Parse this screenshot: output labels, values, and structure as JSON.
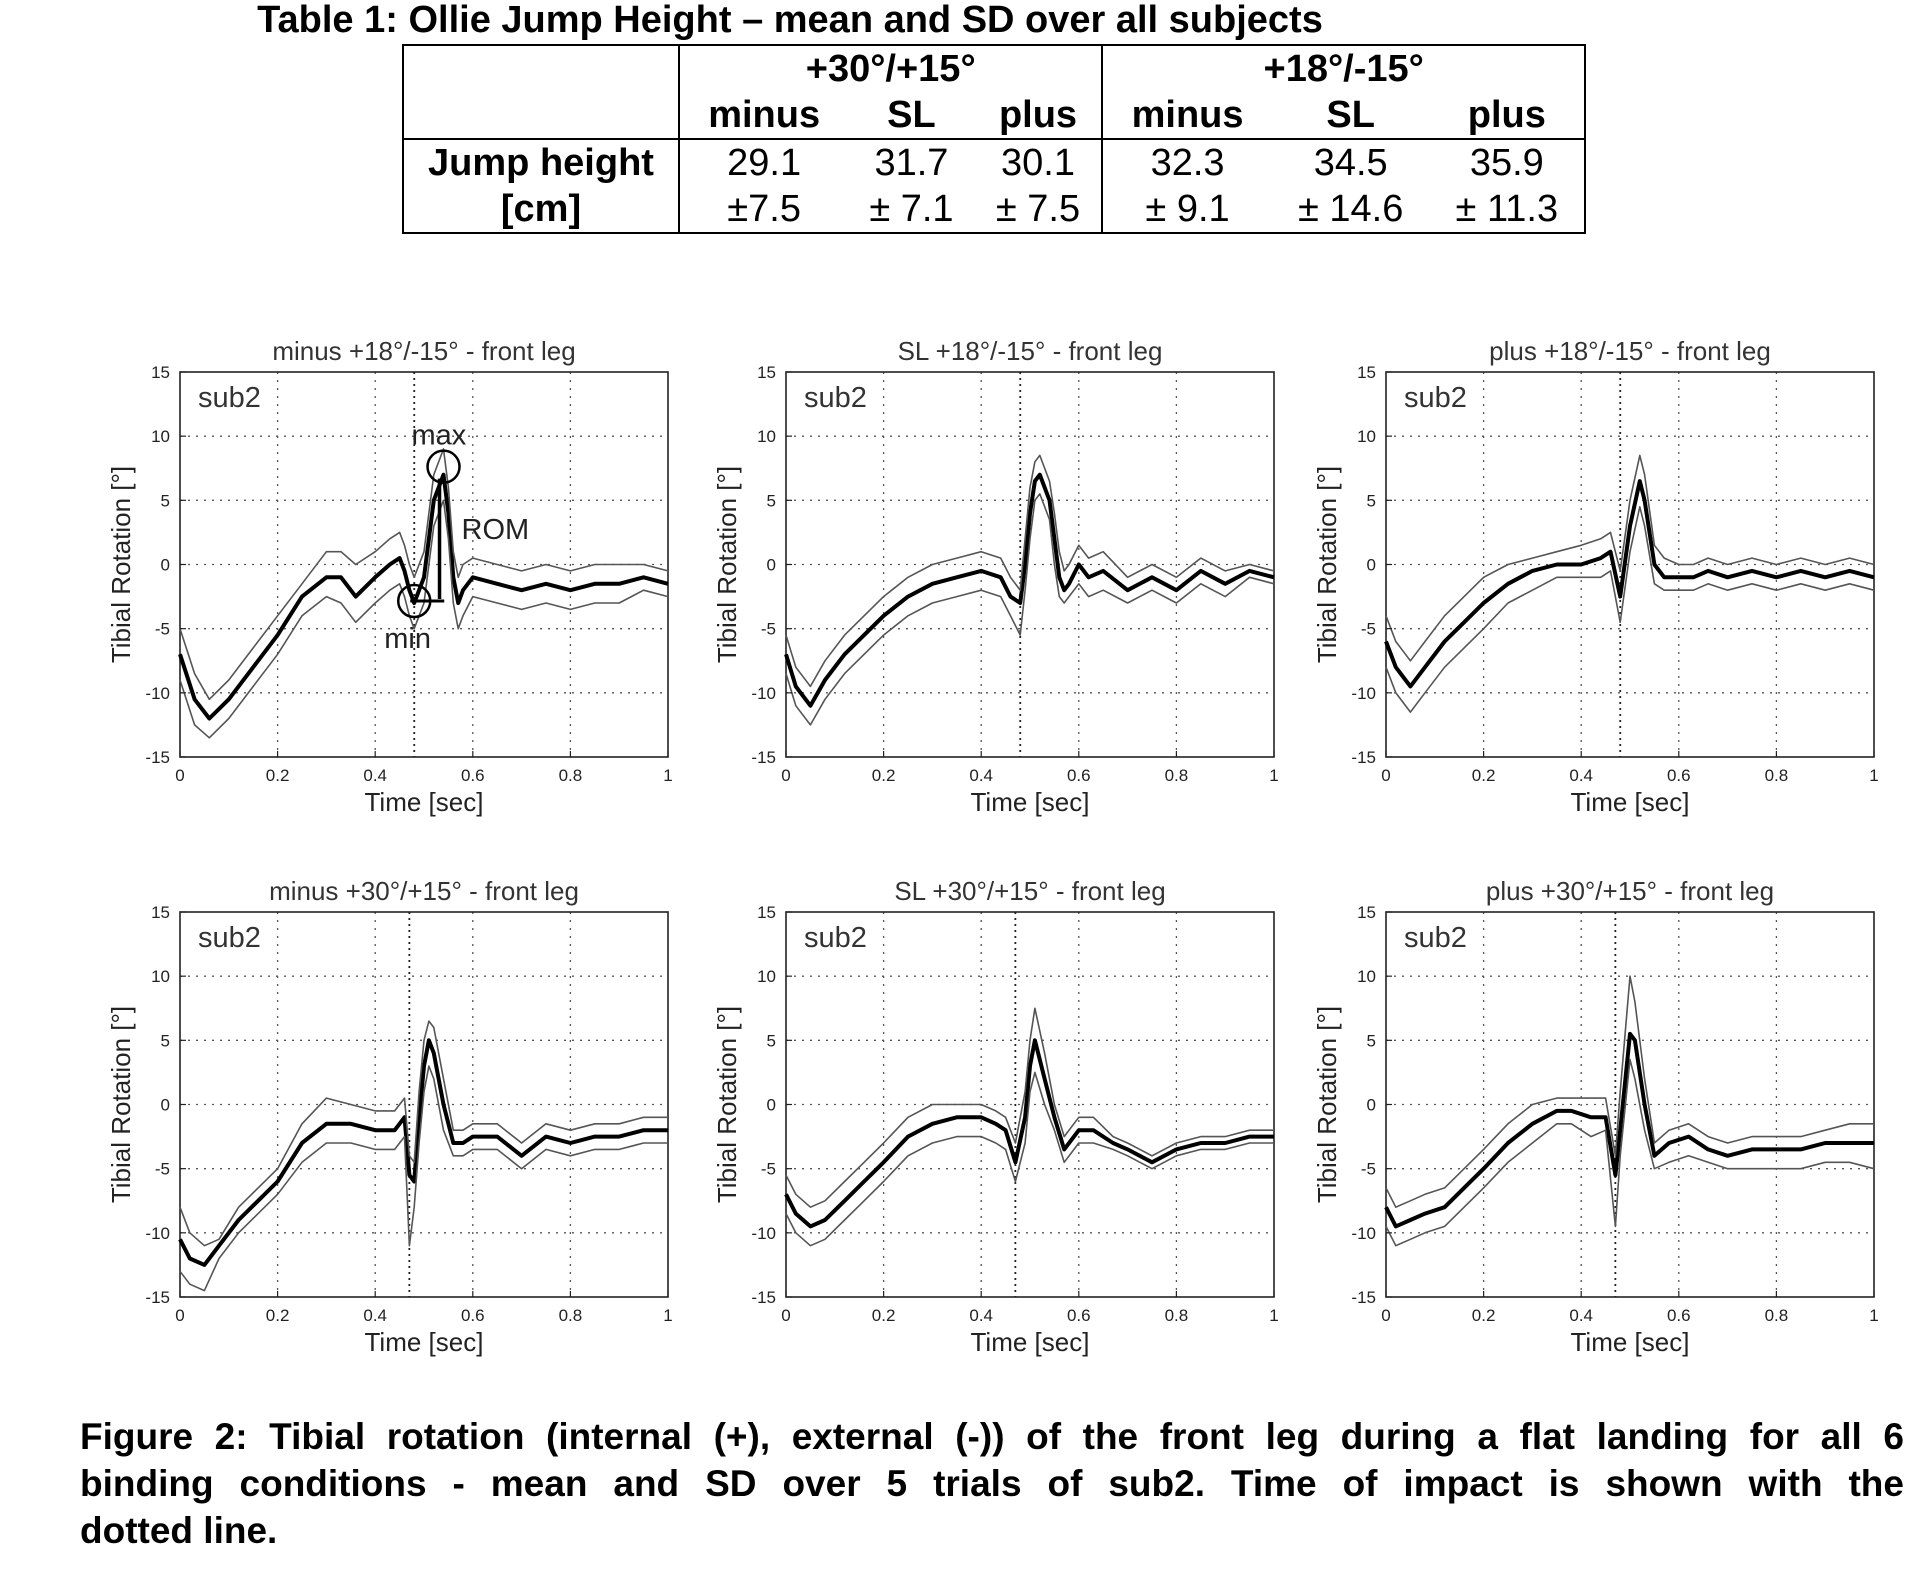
{
  "table": {
    "caption": "Table 1: Ollie Jump Height – mean and SD over all subjects",
    "group_headers": [
      "+30°/+15°",
      "+18°/-15°"
    ],
    "sub_headers": [
      "minus",
      "SL",
      "plus",
      "minus",
      "SL",
      "plus"
    ],
    "row_label_line1": "Jump height",
    "row_label_line2": "[cm]",
    "means": [
      "29.1",
      "31.7",
      "30.1",
      "32.3",
      "34.5",
      "35.9"
    ],
    "sds": [
      "±7.5",
      "± 7.1",
      "± 7.5",
      "± 9.1",
      "± 14.6",
      "± 11.3"
    ]
  },
  "figure": {
    "caption_line1": "Figure 2: Tibial rotation (internal (+), external (-)) of the front leg during a flat landing for all 6",
    "caption_line2": "binding conditions - mean and SD over 5 trials of sub2. Time of impact is shown with the",
    "caption_line3": "dotted line."
  },
  "chart_data": [
    {
      "type": "line",
      "title": "minus +18°/-15° - front leg",
      "xlabel": "Time [sec]",
      "ylabel": "Tibial Rotation [°]",
      "xlim": [
        0,
        1
      ],
      "ylim": [
        -15,
        15
      ],
      "xticks": [
        "0",
        "0.2",
        "0.4",
        "0.6",
        "0.8",
        "1"
      ],
      "yticks": [
        "15",
        "10",
        "5",
        "0",
        "-5",
        "-10",
        "-15"
      ],
      "grid": true,
      "subject_label": "sub2",
      "impact_time": 0.48,
      "annotations": [
        "max",
        "ROM",
        "min"
      ],
      "x": [
        0,
        0.03,
        0.06,
        0.1,
        0.15,
        0.2,
        0.25,
        0.3,
        0.33,
        0.36,
        0.4,
        0.43,
        0.45,
        0.46,
        0.47,
        0.48,
        0.5,
        0.52,
        0.54,
        0.55,
        0.56,
        0.57,
        0.58,
        0.6,
        0.65,
        0.7,
        0.75,
        0.8,
        0.85,
        0.9,
        0.95,
        1.0
      ],
      "series": [
        {
          "name": "mean",
          "values": [
            -7,
            -10.5,
            -12,
            -10.5,
            -8,
            -5.5,
            -2.5,
            -1,
            -1,
            -2.5,
            -1,
            0,
            0.5,
            -0.5,
            -2,
            -3,
            -1,
            5,
            7,
            4,
            -1,
            -3,
            -2,
            -1,
            -1.5,
            -2,
            -1.5,
            -2,
            -1.5,
            -1.5,
            -1,
            -1.5
          ]
        },
        {
          "name": "",
          "values": [
            -5,
            -8.5,
            -10.5,
            -9,
            -6.5,
            -4,
            -1.5,
            1,
            1,
            0,
            1,
            2,
            2.5,
            1.5,
            0,
            -1,
            1,
            7,
            9,
            6,
            1,
            -1,
            0,
            0.5,
            0,
            -0.5,
            0,
            -0.5,
            0,
            0,
            0,
            -0.5
          ]
        },
        {
          "name": "",
          "values": [
            -9,
            -12.5,
            -13.5,
            -12,
            -9.5,
            -7,
            -4,
            -2.5,
            -3,
            -4.5,
            -3,
            -2,
            -1.5,
            -2.5,
            -4,
            -5,
            -3,
            3,
            5,
            2,
            -3,
            -5,
            -4,
            -2.5,
            -3,
            -3.5,
            -3,
            -3.5,
            -3,
            -3,
            -2,
            -2.5
          ]
        }
      ]
    },
    {
      "type": "line",
      "title": "SL +18°/-15° - front leg",
      "xlabel": "Time [sec]",
      "ylabel": "Tibial Rotation [°]",
      "xlim": [
        0,
        1
      ],
      "ylim": [
        -15,
        15
      ],
      "xticks": [
        "0",
        "0.2",
        "0.4",
        "0.6",
        "0.8",
        "1"
      ],
      "yticks": [
        "15",
        "10",
        "5",
        "0",
        "-5",
        "-10",
        "-15"
      ],
      "grid": true,
      "subject_label": "sub2",
      "impact_time": 0.48,
      "x": [
        0,
        0.02,
        0.05,
        0.08,
        0.12,
        0.16,
        0.2,
        0.25,
        0.3,
        0.35,
        0.4,
        0.44,
        0.46,
        0.48,
        0.49,
        0.5,
        0.51,
        0.52,
        0.54,
        0.55,
        0.56,
        0.57,
        0.58,
        0.6,
        0.62,
        0.65,
        0.7,
        0.75,
        0.8,
        0.85,
        0.9,
        0.95,
        1.0
      ],
      "series": [
        {
          "name": "mean",
          "values": [
            -7,
            -9.5,
            -11,
            -9,
            -7,
            -5.5,
            -4,
            -2.5,
            -1.5,
            -1,
            -0.5,
            -1,
            -2.5,
            -3,
            0,
            4,
            6.5,
            7,
            5,
            2,
            -1,
            -2,
            -1.5,
            0,
            -1,
            -0.5,
            -2,
            -1,
            -2,
            -0.5,
            -1.5,
            -0.5,
            -1
          ]
        },
        {
          "name": "",
          "values": [
            -5.5,
            -8,
            -9.5,
            -7.5,
            -5.5,
            -4,
            -2.5,
            -1,
            0,
            0.5,
            1,
            0.5,
            -1,
            -2,
            2,
            6,
            8,
            8.5,
            6.5,
            4,
            1,
            -0.5,
            0,
            1.5,
            0.5,
            1,
            -1,
            0,
            -1,
            0.5,
            -0.5,
            0,
            -0.5
          ]
        },
        {
          "name": "",
          "values": [
            -8.5,
            -11,
            -12.5,
            -10.5,
            -8.5,
            -7,
            -5.5,
            -4,
            -3,
            -2.5,
            -2,
            -2.5,
            -4,
            -5.5,
            -2,
            2,
            5,
            5.5,
            3.5,
            0,
            -2.5,
            -3,
            -2.5,
            -1.5,
            -2.5,
            -2,
            -3,
            -2,
            -3,
            -1.5,
            -2.5,
            -1,
            -1.5
          ]
        }
      ]
    },
    {
      "type": "line",
      "title": "plus +18°/-15° - front leg",
      "xlabel": "Time [sec]",
      "ylabel": "Tibial Rotation [°]",
      "xlim": [
        0,
        1
      ],
      "ylim": [
        -15,
        15
      ],
      "xticks": [
        "0",
        "0.2",
        "0.4",
        "0.6",
        "0.8",
        "1"
      ],
      "yticks": [
        "15",
        "10",
        "5",
        "0",
        "-5",
        "-10",
        "-15"
      ],
      "grid": true,
      "subject_label": "sub2",
      "impact_time": 0.48,
      "x": [
        0,
        0.02,
        0.05,
        0.08,
        0.12,
        0.16,
        0.2,
        0.25,
        0.3,
        0.35,
        0.4,
        0.44,
        0.46,
        0.48,
        0.5,
        0.52,
        0.53,
        0.55,
        0.57,
        0.6,
        0.63,
        0.66,
        0.7,
        0.75,
        0.8,
        0.85,
        0.9,
        0.95,
        1.0
      ],
      "series": [
        {
          "name": "mean",
          "values": [
            -6,
            -8,
            -9.5,
            -8,
            -6,
            -4.5,
            -3,
            -1.5,
            -0.5,
            0,
            0,
            0.5,
            1,
            -2.5,
            3,
            6.5,
            5,
            0,
            -1,
            -1,
            -1,
            -0.5,
            -1,
            -0.5,
            -1,
            -0.5,
            -1,
            -0.5,
            -1
          ]
        },
        {
          "name": "",
          "values": [
            -4,
            -6,
            -7.5,
            -6,
            -4,
            -2.5,
            -1,
            0,
            0.5,
            1,
            1.5,
            2,
            2.5,
            -0.5,
            5,
            8.5,
            7,
            1.5,
            0.5,
            0,
            0,
            0.5,
            0,
            0.5,
            0,
            0.5,
            0,
            0.5,
            0
          ]
        },
        {
          "name": "",
          "values": [
            -8,
            -10,
            -11.5,
            -10,
            -8,
            -6.5,
            -5,
            -3,
            -2,
            -1,
            -1,
            -1,
            -0.5,
            -4.5,
            1,
            4.5,
            3,
            -1.5,
            -2,
            -2,
            -2,
            -1.5,
            -2,
            -1.5,
            -2,
            -1.5,
            -2,
            -1.5,
            -2
          ]
        }
      ]
    },
    {
      "type": "line",
      "title": "minus +30°/+15° - front leg",
      "xlabel": "Time [sec]",
      "ylabel": "Tibial Rotation [°]",
      "xlim": [
        0,
        1
      ],
      "ylim": [
        -15,
        15
      ],
      "xticks": [
        "0",
        "0.2",
        "0.4",
        "0.6",
        "0.8",
        "1"
      ],
      "yticks": [
        "15",
        "10",
        "5",
        "0",
        "-5",
        "-10",
        "-15"
      ],
      "grid": true,
      "subject_label": "sub2",
      "impact_time": 0.47,
      "x": [
        0,
        0.02,
        0.05,
        0.08,
        0.12,
        0.16,
        0.2,
        0.25,
        0.3,
        0.35,
        0.4,
        0.44,
        0.46,
        0.47,
        0.48,
        0.49,
        0.5,
        0.51,
        0.52,
        0.54,
        0.56,
        0.58,
        0.6,
        0.65,
        0.7,
        0.75,
        0.8,
        0.85,
        0.9,
        0.95,
        1.0
      ],
      "series": [
        {
          "name": "mean",
          "values": [
            -10.5,
            -12,
            -12.5,
            -11,
            -9,
            -7.5,
            -6,
            -3,
            -1.5,
            -1.5,
            -2,
            -2,
            -1,
            -5.5,
            -6,
            -1,
            3,
            5,
            4,
            0,
            -3,
            -3,
            -2.5,
            -2.5,
            -4,
            -2.5,
            -3,
            -2.5,
            -2.5,
            -2,
            -2
          ]
        },
        {
          "name": "",
          "values": [
            -8,
            -10,
            -11,
            -10.5,
            -8,
            -6.5,
            -5,
            -1.5,
            0.5,
            0,
            -0.5,
            -0.5,
            0.5,
            -4,
            -4.5,
            1,
            5,
            6.5,
            6,
            2,
            -2,
            -2,
            -1.5,
            -1.5,
            -3,
            -1.5,
            -2,
            -1.5,
            -1.5,
            -1,
            -1
          ]
        },
        {
          "name": "",
          "values": [
            -13,
            -14,
            -14.5,
            -12,
            -10,
            -8.5,
            -7,
            -4.5,
            -3,
            -3,
            -3.5,
            -3.5,
            -2.5,
            -11,
            -8,
            -3,
            1,
            3,
            2,
            -2,
            -4,
            -4,
            -3.5,
            -3.5,
            -5,
            -3.5,
            -4,
            -3.5,
            -3.5,
            -3,
            -3
          ]
        }
      ]
    },
    {
      "type": "line",
      "title": "SL +30°/+15° - front leg",
      "xlabel": "Time [sec]",
      "ylabel": "Tibial Rotation [°]",
      "xlim": [
        0,
        1
      ],
      "ylim": [
        -15,
        15
      ],
      "xticks": [
        "0",
        "0.2",
        "0.4",
        "0.6",
        "0.8",
        "1"
      ],
      "yticks": [
        "15",
        "10",
        "5",
        "0",
        "-5",
        "-10",
        "-15"
      ],
      "grid": true,
      "subject_label": "sub2",
      "impact_time": 0.47,
      "x": [
        0,
        0.02,
        0.05,
        0.08,
        0.12,
        0.16,
        0.2,
        0.25,
        0.3,
        0.35,
        0.4,
        0.43,
        0.45,
        0.47,
        0.49,
        0.5,
        0.51,
        0.53,
        0.55,
        0.57,
        0.6,
        0.63,
        0.67,
        0.7,
        0.75,
        0.8,
        0.85,
        0.9,
        0.95,
        1.0
      ],
      "series": [
        {
          "name": "mean",
          "values": [
            -7,
            -8.5,
            -9.5,
            -9,
            -7.5,
            -6,
            -4.5,
            -2.5,
            -1.5,
            -1,
            -1,
            -1.5,
            -2,
            -4.5,
            -1,
            3,
            5,
            2,
            -1,
            -3.5,
            -2,
            -2,
            -3,
            -3.5,
            -4.5,
            -3.5,
            -3,
            -3,
            -2.5,
            -2.5
          ]
        },
        {
          "name": "",
          "values": [
            -5.5,
            -7,
            -8,
            -7.5,
            -6,
            -4.5,
            -3,
            -1,
            0,
            0,
            0,
            -0.5,
            -1,
            -3,
            1,
            5,
            7.5,
            4,
            0,
            -2.5,
            -1,
            -1,
            -2.5,
            -3,
            -4,
            -3,
            -2.5,
            -2.5,
            -2,
            -2
          ]
        },
        {
          "name": "",
          "values": [
            -8.5,
            -10,
            -11,
            -10.5,
            -9,
            -7.5,
            -6,
            -4,
            -3,
            -2.5,
            -2.5,
            -3,
            -3.5,
            -6,
            -3,
            1,
            2.5,
            0,
            -2,
            -4.5,
            -3,
            -3,
            -3.5,
            -4,
            -5,
            -4,
            -3.5,
            -3.5,
            -3,
            -3
          ]
        }
      ]
    },
    {
      "type": "line",
      "title": "plus +30°/+15° - front leg",
      "xlabel": "Time [sec]",
      "ylabel": "Tibial Rotation [°]",
      "xlim": [
        0,
        1
      ],
      "ylim": [
        -15,
        15
      ],
      "xticks": [
        "0",
        "0.2",
        "0.4",
        "0.6",
        "0.8",
        "1"
      ],
      "yticks": [
        "15",
        "10",
        "5",
        "0",
        "-5",
        "-10",
        "-15"
      ],
      "grid": true,
      "subject_label": "sub2",
      "impact_time": 0.47,
      "x": [
        0,
        0.02,
        0.05,
        0.08,
        0.12,
        0.16,
        0.2,
        0.25,
        0.3,
        0.35,
        0.38,
        0.42,
        0.45,
        0.47,
        0.48,
        0.5,
        0.51,
        0.53,
        0.55,
        0.58,
        0.62,
        0.66,
        0.7,
        0.75,
        0.8,
        0.85,
        0.9,
        0.95,
        1.0
      ],
      "series": [
        {
          "name": "mean",
          "values": [
            -8,
            -9.5,
            -9,
            -8.5,
            -8,
            -6.5,
            -5,
            -3,
            -1.5,
            -0.5,
            -0.5,
            -1,
            -1,
            -5.5,
            -2,
            5.5,
            5,
            0,
            -4,
            -3,
            -2.5,
            -3.5,
            -4,
            -3.5,
            -3.5,
            -3.5,
            -3,
            -3,
            -3
          ]
        },
        {
          "name": "",
          "values": [
            -6.5,
            -8,
            -7.5,
            -7,
            -6.5,
            -5,
            -3.5,
            -1.5,
            0,
            0.5,
            0.5,
            0.5,
            0.5,
            -4,
            1,
            10,
            8,
            2,
            -3,
            -2,
            -1.5,
            -2.5,
            -3,
            -2.5,
            -2.5,
            -2.5,
            -2,
            -1.5,
            -1.5
          ]
        },
        {
          "name": "",
          "values": [
            -9.5,
            -11,
            -10.5,
            -10,
            -9.5,
            -8,
            -6.5,
            -4.5,
            -3,
            -1.5,
            -1.5,
            -2.5,
            -2,
            -9.5,
            -4,
            3.5,
            2,
            -2,
            -5,
            -4.5,
            -4,
            -4.5,
            -5,
            -5,
            -5,
            -5,
            -4.5,
            -4.5,
            -5
          ]
        }
      ]
    }
  ]
}
